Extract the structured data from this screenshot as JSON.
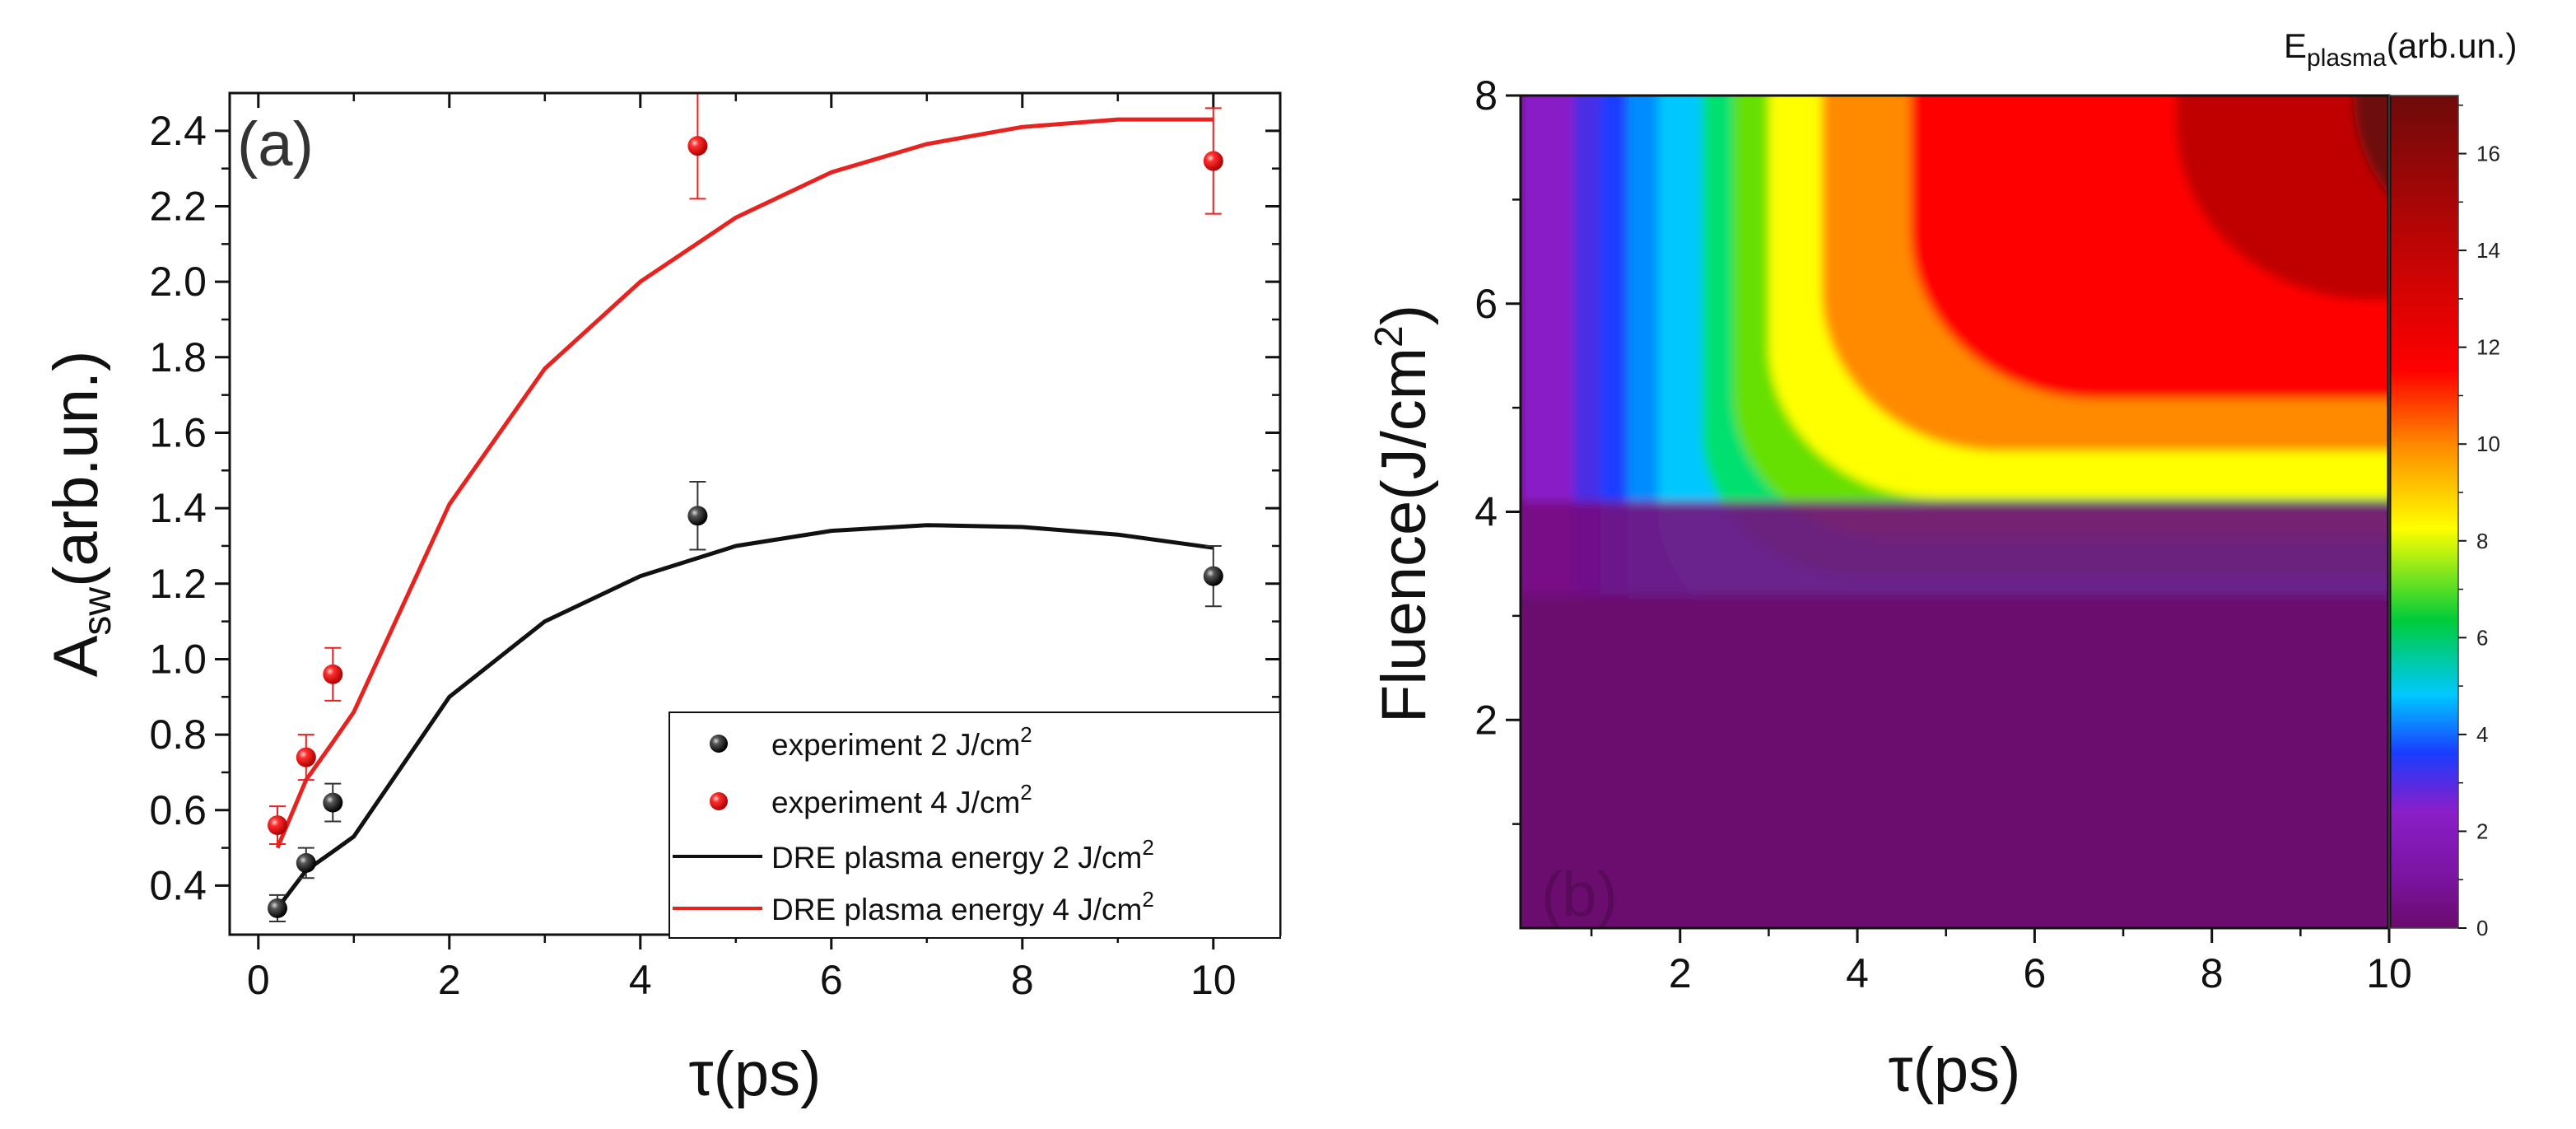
{
  "chart_data": [
    {
      "panel": "(a)",
      "type": "line",
      "xlabel": "τ(ps)",
      "ylabel_main": "A",
      "ylabel_sub": "sw",
      "ylabel_rest": "(arb.un.)",
      "xlim": [
        -0.3,
        10.7
      ],
      "ylim": [
        0.27,
        2.5
      ],
      "xticks": [
        0,
        2,
        4,
        6,
        8,
        10
      ],
      "xtick_labels": [
        "0",
        "2",
        "4",
        "6",
        "8",
        "10"
      ],
      "yticks": [
        0.4,
        0.6,
        0.8,
        1.0,
        1.2,
        1.4,
        1.6,
        1.8,
        2.0,
        2.2,
        2.4
      ],
      "ytick_labels": [
        "0.4",
        "0.6",
        "0.8",
        "1.0",
        "1.2",
        "1.4",
        "1.6",
        "1.8",
        "2.0",
        "2.2",
        "2.4"
      ],
      "scatter_series": [
        {
          "name": "experiment 2 J/cm",
          "sup": "2",
          "color": "#111111",
          "points": [
            {
              "x": 0.2,
              "y": 0.34,
              "err": 0.035
            },
            {
              "x": 0.5,
              "y": 0.46,
              "err": 0.04
            },
            {
              "x": 0.78,
              "y": 0.62,
              "err": 0.05
            },
            {
              "x": 4.6,
              "y": 1.38,
              "err": 0.09
            },
            {
              "x": 10.0,
              "y": 1.22,
              "err": 0.08
            }
          ]
        },
        {
          "name": "experiment 4 J/cm",
          "sup": "2",
          "color": "#e8231f",
          "points": [
            {
              "x": 0.2,
              "y": 0.56,
              "err": 0.05
            },
            {
              "x": 0.5,
              "y": 0.74,
              "err": 0.06
            },
            {
              "x": 0.78,
              "y": 0.96,
              "err": 0.07
            },
            {
              "x": 4.6,
              "y": 2.36,
              "err": 0.14
            },
            {
              "x": 10.0,
              "y": 2.32,
              "err": 0.14
            }
          ]
        }
      ],
      "line_series": [
        {
          "name": "DRE plasma energy 2 J/cm",
          "sup": "2",
          "color": "#111111",
          "x": [
            0.2,
            0.5,
            0.78,
            1.0,
            2.0,
            3.0,
            4.0,
            5.0,
            6.0,
            7.0,
            8.0,
            9.0,
            10.0
          ],
          "y": [
            0.34,
            0.44,
            0.49,
            0.53,
            0.9,
            1.1,
            1.22,
            1.3,
            1.34,
            1.355,
            1.35,
            1.33,
            1.295
          ]
        },
        {
          "name": "DRE plasma energy 4 J/cm",
          "sup": "2",
          "color": "#e8231f",
          "x": [
            0.2,
            0.5,
            0.78,
            1.0,
            2.0,
            3.0,
            4.0,
            5.0,
            6.0,
            7.0,
            8.0,
            9.0,
            10.0
          ],
          "y": [
            0.5,
            0.68,
            0.78,
            0.86,
            1.41,
            1.77,
            2.0,
            2.17,
            2.29,
            2.365,
            2.41,
            2.43,
            2.43
          ]
        }
      ],
      "legend_position": "bottom-right"
    },
    {
      "panel": "(b)",
      "type": "heatmap",
      "xlabel": "τ(ps)",
      "ylabel_main": "Fluence(J/cm",
      "ylabel_sup": "2",
      "ylabel_end": ")",
      "xlim": [
        0.2,
        10.0
      ],
      "ylim": [
        0.0,
        8.0
      ],
      "xticks": [
        2,
        4,
        6,
        8,
        10
      ],
      "xtick_labels": [
        "2",
        "4",
        "6",
        "8",
        "10"
      ],
      "yticks": [
        2,
        4,
        6,
        8
      ],
      "ytick_labels": [
        "2",
        "4",
        "6",
        "8"
      ],
      "colorbar_title_main": "E",
      "colorbar_title_sub": "plasma",
      "colorbar_title_rest": "(arb.un.)",
      "zlim": [
        0,
        17.2
      ],
      "colorbar_ticks": [
        0,
        2,
        4,
        6,
        8,
        10,
        12,
        14,
        16
      ],
      "colorbar_tick_labels": [
        "0",
        "2",
        "4",
        "6",
        "8",
        "10",
        "12",
        "14",
        "16"
      ],
      "colormap_stops": [
        "#6b0a6e",
        "#8a1ec8",
        "#1a3cff",
        "#00c8ff",
        "#00cc3a",
        "#ffff00",
        "#ff8a00",
        "#ff0000",
        "#6e0a0a"
      ]
    }
  ]
}
